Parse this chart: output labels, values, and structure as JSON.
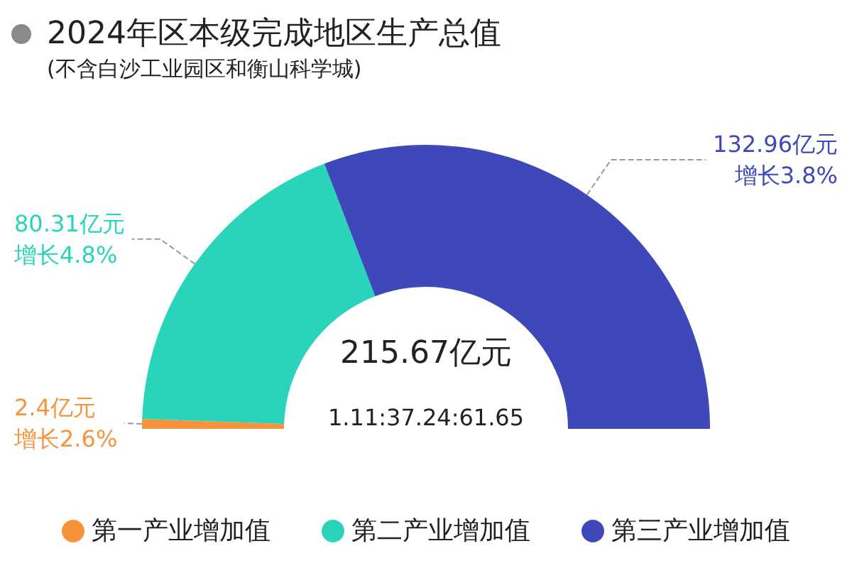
{
  "chart_data": {
    "type": "donut",
    "title": "2024年区本级完成地区生产总值",
    "subtitle": "(不含白沙工业园区和衡山科学城)",
    "categories": [
      "第一产业增加值",
      "第二产业增加值",
      "第三产业增加值"
    ],
    "values": [
      2.4,
      80.31,
      132.96
    ],
    "colors": [
      "#f7943b",
      "#2ad4bb",
      "#3f48b8"
    ],
    "value_labels": [
      "2.4亿元",
      "80.31亿元",
      "132.96亿元"
    ],
    "annotations": [
      "215.67亿元",
      "1.11:37.24:61.65",
      {
        "text": "增长2.6%",
        "x": "第一产业增加值"
      },
      {
        "text": "增长4.8%",
        "x": "第二产业增加值"
      },
      {
        "text": "增长3.8%",
        "x": "第三产业增加值"
      }
    ],
    "legend": "bottom"
  }
}
